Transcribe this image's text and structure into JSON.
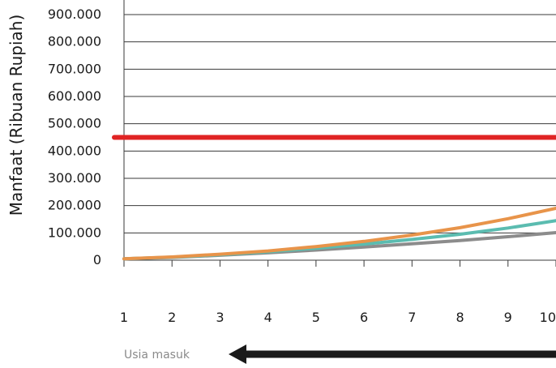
{
  "chart_data": {
    "type": "line",
    "ylabel": "Manfaat (Ribuan Rupiah)",
    "xlabel": "",
    "x": [
      1,
      2,
      3,
      4,
      5,
      6,
      7,
      8,
      9,
      10
    ],
    "x_tick_labels": [
      "1",
      "2",
      "3",
      "4",
      "5",
      "6",
      "7",
      "8",
      "9",
      "10"
    ],
    "y_ticks": [
      0,
      100000,
      200000,
      300000,
      400000,
      500000,
      600000,
      700000,
      800000,
      900000
    ],
    "y_tick_labels": [
      "0",
      "100.000",
      "200.000",
      "300.000",
      "400.000",
      "500.000",
      "600.000",
      "700.000",
      "800.000",
      "900.000"
    ],
    "ylim": [
      0,
      900000
    ],
    "xlim": [
      1,
      10
    ],
    "grid": true,
    "series": [
      {
        "values": [
          450000,
          450000,
          450000,
          450000,
          450000,
          450000,
          450000,
          450000,
          450000,
          450000
        ]
      },
      {
        "values": [
          5000,
          12000,
          22000,
          34000,
          50000,
          69000,
          92000,
          119000,
          152000,
          190000
        ]
      },
      {
        "values": [
          5000,
          11000,
          20000,
          31000,
          44000,
          59000,
          76000,
          95000,
          118000,
          145000
        ]
      },
      {
        "values": [
          5000,
          10000,
          18000,
          27000,
          37000,
          48000,
          60000,
          72000,
          86000,
          101000
        ]
      }
    ],
    "annotation": {
      "text": "Usia masuk",
      "arrow_direction": "left"
    }
  },
  "colors": {
    "series": [
      "#e02424",
      "#e8944a",
      "#5bbcb0",
      "#8c8c8c"
    ],
    "grid": "#3a3a3a",
    "arrow": "#1a1a1a",
    "annotation_text": "#8a8a8a"
  }
}
